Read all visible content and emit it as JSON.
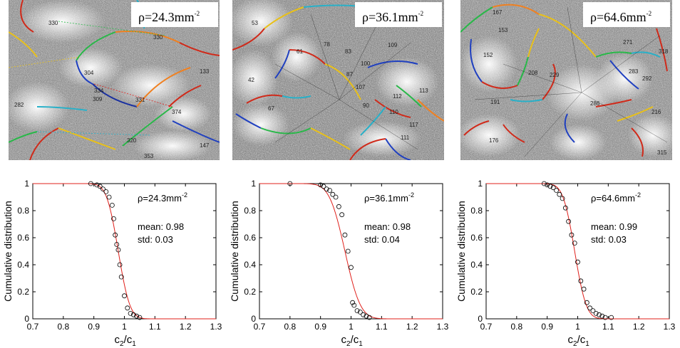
{
  "images": [
    {
      "label_prefix": "ρ=",
      "label_value": "24.3mm",
      "label_exp": "-2",
      "site_labels": [
        "330",
        "330",
        "304",
        "309",
        "331",
        "374",
        "282",
        "133",
        "334",
        "320",
        "353",
        "147"
      ]
    },
    {
      "label_prefix": "ρ=",
      "label_value": "36.1mm",
      "label_exp": "-2",
      "site_labels": [
        "53",
        "61",
        "78",
        "83",
        "109",
        "42",
        "100",
        "87",
        "107",
        "112",
        "113",
        "110",
        "117",
        "111",
        "90",
        "67"
      ]
    },
    {
      "label_prefix": "ρ=",
      "label_value": "64.6mm",
      "label_exp": "-2",
      "site_labels": [
        "167",
        "153",
        "271",
        "318",
        "152",
        "208",
        "229",
        "283",
        "292",
        "286",
        "176",
        "315",
        "191",
        "216"
      ]
    }
  ],
  "axis_text": {
    "ylabel": "Cumulative distribution",
    "xlabel_main": "c",
    "xlabel_sub1": "2",
    "xlabel_slash": "/c",
    "xlabel_sub2": "1"
  },
  "colors": {
    "fit_line": "#e0201b",
    "markers": "#000000"
  },
  "chart_data": [
    {
      "type": "scatter",
      "annotation": {
        "rho_prefix": "ρ=",
        "rho_value": "24.3mm",
        "rho_exp": "-2",
        "mean": "mean: 0.98",
        "std": "std: 0.03"
      },
      "xlim": [
        0.7,
        1.3
      ],
      "ylim": [
        0,
        1
      ],
      "xticks": [
        "0.7",
        "0.8",
        "0.9",
        "1",
        "1.1",
        "1.2",
        "1.3"
      ],
      "yticks": [
        "0",
        "0.2",
        "0.4",
        "0.6",
        "0.8",
        "1"
      ],
      "series": [
        {
          "kind": "empirical",
          "marker": "circle",
          "x": [
            0.89,
            0.91,
            0.92,
            0.93,
            0.94,
            0.95,
            0.96,
            0.965,
            0.97,
            0.975,
            0.98,
            0.985,
            0.99,
            1.0,
            1.01,
            1.02,
            1.03,
            1.04,
            1.05
          ],
          "y": [
            1.0,
            0.99,
            0.98,
            0.96,
            0.94,
            0.9,
            0.84,
            0.74,
            0.62,
            0.55,
            0.51,
            0.4,
            0.31,
            0.17,
            0.08,
            0.04,
            0.03,
            0.02,
            0.01
          ]
        },
        {
          "kind": "fit",
          "model": "normal_cdf_complement",
          "mean": 0.98,
          "std": 0.03
        }
      ]
    },
    {
      "type": "scatter",
      "annotation": {
        "rho_prefix": "ρ=",
        "rho_value": "36.1mm",
        "rho_exp": "-2",
        "mean": "mean: 0.98",
        "std": "std: 0.04"
      },
      "xlim": [
        0.7,
        1.3
      ],
      "ylim": [
        0,
        1
      ],
      "xticks": [
        "0.7",
        "0.8",
        "0.9",
        "1",
        "1.1",
        "1.2",
        "1.3"
      ],
      "yticks": [
        "0",
        "0.2",
        "0.4",
        "0.6",
        "0.8",
        "1"
      ],
      "series": [
        {
          "kind": "empirical",
          "marker": "circle",
          "x": [
            0.8,
            0.9,
            0.91,
            0.92,
            0.93,
            0.94,
            0.95,
            0.96,
            0.97,
            0.98,
            0.99,
            1.0,
            1.005,
            1.01,
            1.02,
            1.03,
            1.04,
            1.05,
            1.06
          ],
          "y": [
            1.0,
            0.99,
            0.98,
            0.96,
            0.95,
            0.92,
            0.9,
            0.83,
            0.77,
            0.62,
            0.5,
            0.38,
            0.12,
            0.1,
            0.06,
            0.05,
            0.03,
            0.02,
            0.01
          ]
        },
        {
          "kind": "fit",
          "model": "normal_cdf_complement",
          "mean": 0.98,
          "std": 0.04
        }
      ]
    },
    {
      "type": "scatter",
      "annotation": {
        "rho_prefix": "ρ=",
        "rho_value": "64.6mm",
        "rho_exp": "-2",
        "mean": "mean: 0.99",
        "std": "std: 0.03"
      },
      "xlim": [
        0.7,
        1.3
      ],
      "ylim": [
        0,
        1
      ],
      "xticks": [
        "0.7",
        "0.8",
        "0.9",
        "1",
        "1.1",
        "1.2",
        "1.3"
      ],
      "yticks": [
        "0",
        "0.2",
        "0.4",
        "0.6",
        "0.8",
        "1"
      ],
      "series": [
        {
          "kind": "empirical",
          "marker": "circle",
          "x": [
            0.89,
            0.9,
            0.91,
            0.92,
            0.93,
            0.94,
            0.95,
            0.96,
            0.97,
            0.98,
            0.99,
            1.0,
            1.01,
            1.02,
            1.03,
            1.04,
            1.05,
            1.06,
            1.07,
            1.08,
            1.09,
            1.11
          ],
          "y": [
            1.0,
            0.99,
            0.98,
            0.97,
            0.95,
            0.92,
            0.89,
            0.82,
            0.72,
            0.62,
            0.56,
            0.42,
            0.28,
            0.22,
            0.12,
            0.08,
            0.06,
            0.04,
            0.03,
            0.02,
            0.01,
            0.01
          ]
        },
        {
          "kind": "fit",
          "model": "normal_cdf_complement",
          "mean": 0.99,
          "std": 0.03
        }
      ]
    }
  ]
}
